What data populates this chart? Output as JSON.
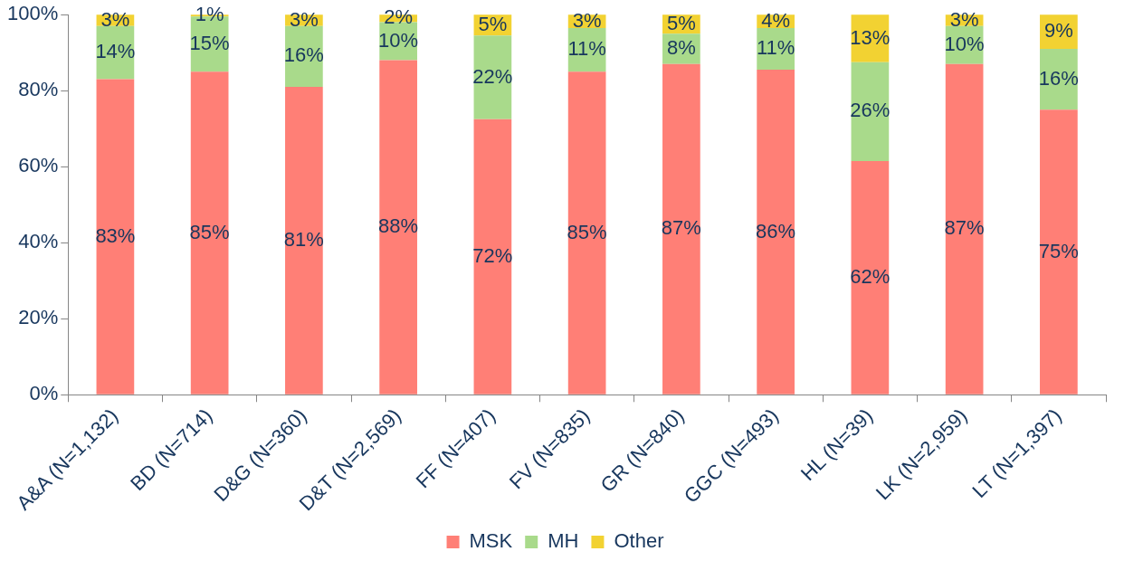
{
  "chart_data": {
    "type": "bar",
    "stacked": true,
    "categories": [
      "A&A (N=1,132)",
      "BD (N=714)",
      "D&G (N=360)",
      "D&T (N=2,569)",
      "FF (N=407)",
      "FV (N=835)",
      "GR (N=840)",
      "GGC (N=493)",
      "HL (N=39)",
      "LK (N=2,959)",
      "LT (N=1,397)"
    ],
    "series": [
      {
        "name": "MSK",
        "color": "#ff7f76",
        "values": [
          83,
          85,
          81,
          88,
          72.5,
          85,
          87,
          85.5,
          61.5,
          87,
          75
        ],
        "value_labels": [
          "83%",
          "85%",
          "81%",
          "88%",
          "72%",
          "85%",
          "87%",
          "86%",
          "62%",
          "87%",
          "75%"
        ]
      },
      {
        "name": "MH",
        "color": "#a9da8b",
        "values": [
          14,
          14.5,
          16,
          10,
          22,
          11.5,
          8,
          11,
          26,
          10,
          16
        ],
        "value_labels": [
          "14%",
          "15%",
          "16%",
          "10%",
          "22%",
          "11%",
          "8%",
          "11%",
          "26%",
          "10%",
          "16%"
        ]
      },
      {
        "name": "Other",
        "color": "#f2d232",
        "values": [
          3,
          0.5,
          3,
          2,
          5.5,
          3.5,
          5,
          3.5,
          12.5,
          3,
          9
        ],
        "value_labels": [
          "3%",
          "1%",
          "3%",
          "2%",
          "5%",
          "3%",
          "5%",
          "4%",
          "13%",
          "3%",
          "9%"
        ]
      }
    ],
    "ylim": [
      0,
      100
    ],
    "yticks": [
      {
        "value": 0,
        "label": "0%"
      },
      {
        "value": 20,
        "label": "20%"
      },
      {
        "value": 40,
        "label": "40%"
      },
      {
        "value": 60,
        "label": "60%"
      },
      {
        "value": 80,
        "label": "80%"
      },
      {
        "value": 100,
        "label": "100%"
      }
    ],
    "grid": false,
    "legend": "bottom"
  }
}
